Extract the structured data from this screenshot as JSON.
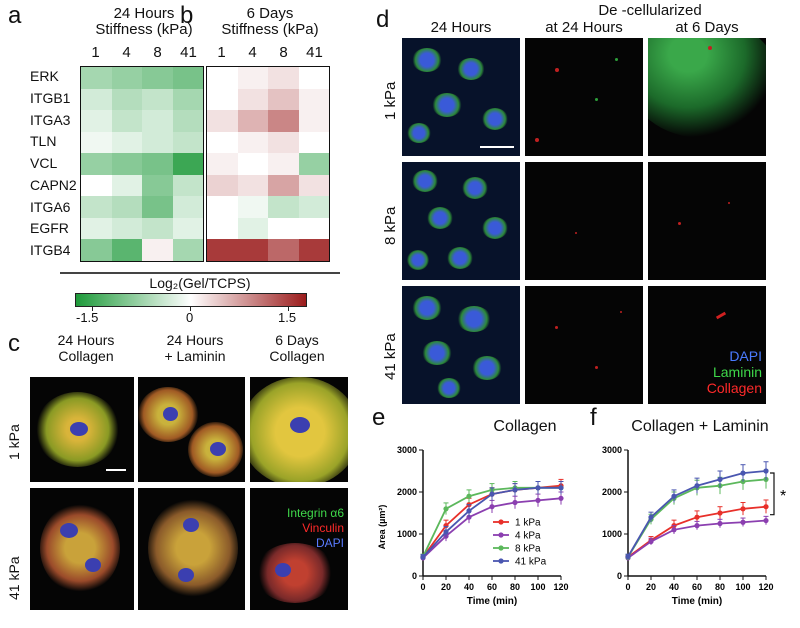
{
  "panels": {
    "a": {
      "label": "a",
      "title_line1": "24 Hours",
      "title_line2": "Stiffness (kPa)",
      "stiffness": [
        "1",
        "4",
        "8",
        "41"
      ],
      "genes": [
        "ERK",
        "ITGB1",
        "ITGA3",
        "TLN",
        "VCL",
        "CAPN2",
        "ITGA6",
        "EGFR",
        "ITGB4"
      ],
      "values": [
        [
          -0.6,
          -0.7,
          -0.8,
          -0.9
        ],
        [
          -0.3,
          -0.5,
          -0.4,
          -0.6
        ],
        [
          -0.2,
          -0.4,
          -0.3,
          -0.5
        ],
        [
          -0.1,
          -0.2,
          -0.3,
          -0.4
        ],
        [
          -0.7,
          -0.8,
          -0.9,
          -1.3
        ],
        [
          0.0,
          -0.2,
          -0.8,
          -0.4
        ],
        [
          -0.4,
          -0.5,
          -0.9,
          -0.3
        ],
        [
          -0.2,
          -0.3,
          -0.4,
          -0.2
        ],
        [
          -0.8,
          -1.1,
          0.1,
          -0.6
        ]
      ]
    },
    "b": {
      "label": "b",
      "title_line1": "6 Days",
      "title_line2": "Stiffness (kPa)",
      "stiffness": [
        "1",
        "4",
        "8",
        "41"
      ],
      "values": [
        [
          0.0,
          0.1,
          0.2,
          0.0
        ],
        [
          0.0,
          0.2,
          0.4,
          0.1
        ],
        [
          0.2,
          0.5,
          0.8,
          0.1
        ],
        [
          0.0,
          0.1,
          0.2,
          0.0
        ],
        [
          0.1,
          0.0,
          0.1,
          -0.7
        ],
        [
          0.3,
          0.2,
          0.6,
          0.2
        ],
        [
          0.0,
          -0.1,
          -0.4,
          -0.3
        ],
        [
          0.0,
          -0.2,
          0.0,
          0.0
        ],
        [
          1.3,
          1.3,
          1.0,
          1.3
        ]
      ]
    },
    "colorbar": {
      "title": "Log₂(Gel/TCPS)",
      "min_label": "-1.5",
      "mid_label": "0",
      "max_label": "1.5",
      "neg_color": "#1e9a3a",
      "pos_color": "#9b1c1c"
    },
    "c": {
      "label": "c",
      "cols": [
        {
          "line1": "24 Hours",
          "line2": "Collagen"
        },
        {
          "line1": "24 Hours",
          "line2": "+ Laminin"
        },
        {
          "line1": "6 Days",
          "line2": "Collagen"
        }
      ],
      "rows": [
        "1 kPa",
        "41 kPa"
      ],
      "legend": [
        "Integrin α6",
        "Vinculin",
        "DAPI"
      ]
    },
    "d": {
      "label": "d",
      "header_decell": "De -cellularized",
      "cols": [
        "24 Hours",
        "at 24 Hours",
        "at 6 Days"
      ],
      "rows": [
        "1 kPa",
        "8 kPa",
        "41 kPa"
      ],
      "legend": [
        "DAPI",
        "Laminin",
        "Collagen"
      ]
    },
    "e": {
      "label": "e",
      "title": "Collagen"
    },
    "f": {
      "label": "f",
      "title": "Collagen + Laminin",
      "sig": "*"
    }
  },
  "chart_data": [
    {
      "type": "line",
      "title": "Collagen",
      "xlabel": "Time (min)",
      "ylabel": "Area (µm²)",
      "x": [
        0,
        20,
        40,
        60,
        80,
        100,
        120
      ],
      "xticks": [
        "0",
        "20",
        "40",
        "60",
        "80",
        "100",
        "120"
      ],
      "yticks": [
        "0",
        "1000",
        "2000",
        "3000"
      ],
      "xlim": [
        0,
        120
      ],
      "ylim": [
        0,
        3000
      ],
      "legend_position": "bottom-right",
      "series": [
        {
          "name": "1 kPa",
          "color": "#e8302a",
          "values": [
            450,
            1200,
            1700,
            1950,
            2050,
            2100,
            2150
          ],
          "err": [
            60,
            130,
            150,
            150,
            150,
            150,
            150
          ]
        },
        {
          "name": "4 kPa",
          "color": "#8b3fb0",
          "values": [
            430,
            950,
            1400,
            1650,
            1750,
            1800,
            1850
          ],
          "err": [
            60,
            120,
            140,
            150,
            150,
            150,
            150
          ]
        },
        {
          "name": "8 kPa",
          "color": "#5cb85c",
          "values": [
            460,
            1600,
            1900,
            2050,
            2100,
            2100,
            2100
          ],
          "err": [
            60,
            140,
            150,
            150,
            150,
            150,
            150
          ]
        },
        {
          "name": "41 kPa",
          "color": "#4a56b0",
          "values": [
            450,
            1050,
            1550,
            1950,
            2050,
            2100,
            2100
          ],
          "err": [
            60,
            130,
            150,
            150,
            150,
            150,
            150
          ]
        }
      ]
    },
    {
      "type": "line",
      "title": "Collagen + Laminin",
      "xlabel": "Time (min)",
      "ylabel": "",
      "x": [
        0,
        20,
        40,
        60,
        80,
        100,
        120
      ],
      "xticks": [
        "0",
        "20",
        "40",
        "60",
        "80",
        "100",
        "120"
      ],
      "yticks": [
        "0",
        "1000",
        "2000",
        "3000"
      ],
      "xlim": [
        0,
        120
      ],
      "ylim": [
        0,
        3000
      ],
      "annotation": "*",
      "series": [
        {
          "name": "1 kPa",
          "color": "#e8302a",
          "values": [
            450,
            850,
            1200,
            1400,
            1500,
            1600,
            1650
          ],
          "err": [
            50,
            90,
            130,
            150,
            150,
            150,
            160
          ]
        },
        {
          "name": "4 kPa",
          "color": "#8b3fb0",
          "values": [
            430,
            820,
            1100,
            1200,
            1250,
            1280,
            1320
          ],
          "err": [
            50,
            80,
            100,
            100,
            100,
            100,
            100
          ]
        },
        {
          "name": "8 kPa",
          "color": "#5cb85c",
          "values": [
            450,
            1350,
            1850,
            2100,
            2150,
            2250,
            2300
          ],
          "err": [
            60,
            120,
            150,
            180,
            200,
            200,
            220
          ]
        },
        {
          "name": "41 kPa",
          "color": "#4a56b0",
          "values": [
            460,
            1400,
            1900,
            2150,
            2300,
            2450,
            2500
          ],
          "err": [
            60,
            120,
            150,
            180,
            200,
            200,
            220
          ]
        }
      ]
    }
  ]
}
